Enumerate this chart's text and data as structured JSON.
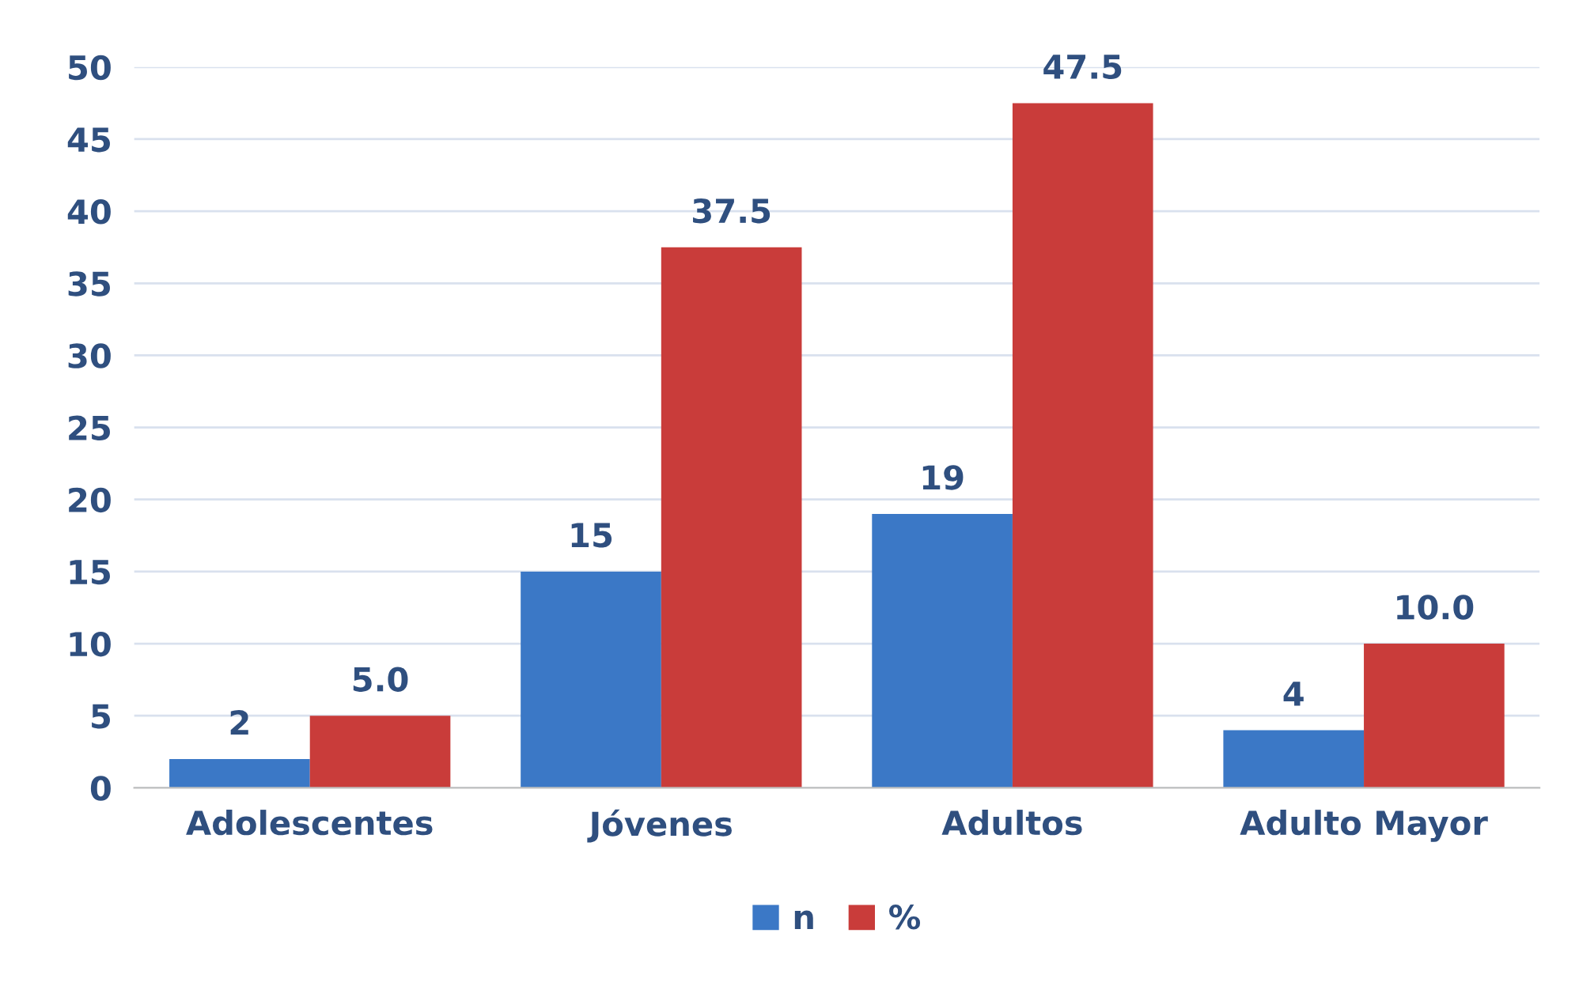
{
  "chart_data": {
    "type": "bar",
    "categories": [
      "Adolescentes",
      "Jóvenes",
      "Adultos",
      "Adulto Mayor"
    ],
    "series": [
      {
        "name": "n",
        "color": "#3b78c6",
        "values": [
          2,
          15,
          19,
          4
        ],
        "value_labels": [
          "2",
          "15",
          "19",
          "4"
        ]
      },
      {
        "name": "%",
        "color": "#c93c3a",
        "values": [
          5.0,
          37.5,
          47.5,
          10.0
        ],
        "value_labels": [
          "5.0",
          "37.5",
          "47.5",
          "10.0"
        ]
      }
    ],
    "ylim": [
      0,
      50
    ],
    "yticks": [
      0,
      5,
      10,
      15,
      20,
      25,
      30,
      35,
      40,
      45,
      50
    ],
    "grid": "y",
    "legend": "bottom"
  }
}
